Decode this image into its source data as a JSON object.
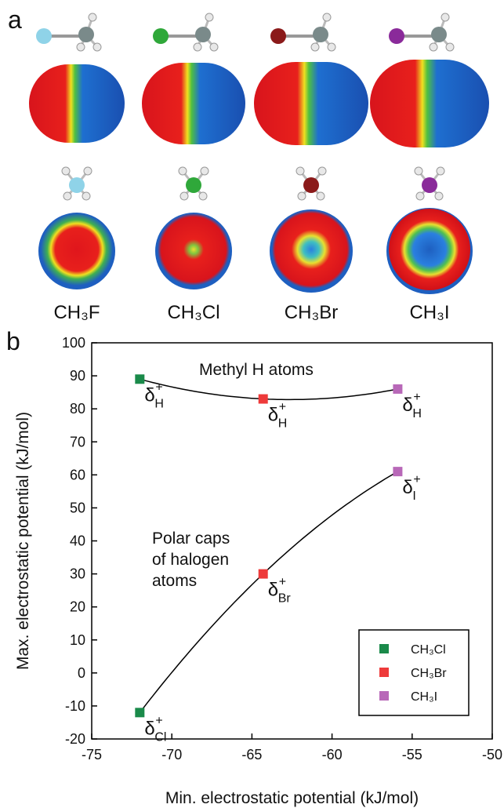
{
  "panel_a": {
    "label": "a",
    "molecules": [
      {
        "name": "CH₃F",
        "atom_color": "#8fd3e8"
      },
      {
        "name": "CH₃Cl",
        "atom_color": "#2fa83a"
      },
      {
        "name": "CH₃Br",
        "atom_color": "#8b1a1a"
      },
      {
        "name": "CH₃I",
        "atom_color": "#8a2a9a"
      }
    ]
  },
  "chart_data": {
    "type": "scatter",
    "panel_label": "b",
    "x_label": "Min. electrostatic potential (kJ/mol)",
    "y_label": "Max. electrostatic potential (kJ/mol)",
    "xlim": [
      -75,
      -50
    ],
    "xticks": [
      -75,
      -70,
      -65,
      -60,
      -55,
      -50
    ],
    "ylim": [
      -20,
      100
    ],
    "yticks": [
      -20,
      -10,
      0,
      10,
      20,
      30,
      40,
      50,
      60,
      70,
      80,
      90,
      100
    ],
    "legend": "lower right",
    "annotations": [
      {
        "lines": [
          "Methyl H atoms"
        ]
      },
      {
        "lines": [
          "Polar caps",
          "of halogen",
          "atoms"
        ]
      }
    ],
    "series": [
      {
        "name": "CH₃Cl",
        "color": "#1a8a4a",
        "x": [
          -72,
          -72
        ],
        "y": [
          89,
          -12
        ],
        "point_labels": [
          {
            "base": "δ",
            "sup": "+",
            "sub": "H"
          },
          {
            "base": "δ",
            "sup": "+",
            "sub": "Cl"
          }
        ]
      },
      {
        "name": "CH₃Br",
        "color": "#ee3a3a",
        "x": [
          -64.3,
          -64.3
        ],
        "y": [
          83,
          30
        ],
        "point_labels": [
          {
            "base": "δ",
            "sup": "+",
            "sub": "H"
          },
          {
            "base": "δ",
            "sup": "+",
            "sub": "Br"
          }
        ]
      },
      {
        "name": "CH₃I",
        "color": "#b868b8",
        "x": [
          -55.9,
          -55.9
        ],
        "y": [
          86,
          61
        ],
        "point_labels": [
          {
            "base": "δ",
            "sup": "+",
            "sub": "H"
          },
          {
            "base": "δ",
            "sup": "+",
            "sub": "I"
          }
        ]
      }
    ]
  }
}
